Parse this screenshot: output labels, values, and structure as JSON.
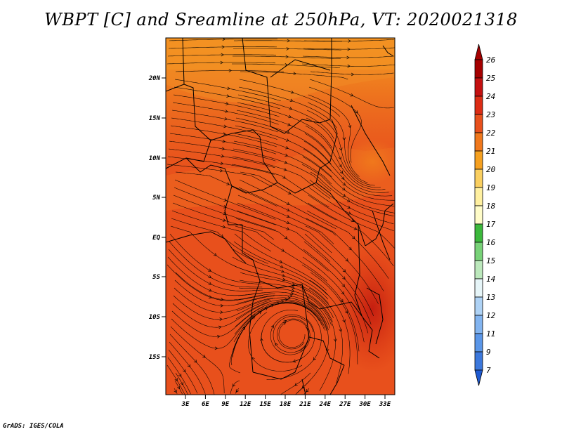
{
  "title": "WBPT [C] and Sreamline at 250hPa, VT: 2020021318",
  "footer": "GrADS: IGES/COLA",
  "map": {
    "lat_labels": [
      "20N",
      "15N",
      "10N",
      "5N",
      "EQ",
      "5S",
      "10S",
      "15S"
    ],
    "lon_labels": [
      "3E",
      "6E",
      "9E",
      "12E",
      "15E",
      "18E",
      "21E",
      "24E",
      "27E",
      "30E",
      "33E"
    ],
    "colors": {
      "base": "#e8501c",
      "north": "#f09426",
      "mid": "#ec6e20",
      "hot": "#d63012"
    }
  },
  "colorbar": {
    "labels": [
      "26",
      "25",
      "24",
      "23",
      "22",
      "21",
      "20",
      "19",
      "18",
      "17",
      "16",
      "15",
      "14",
      "13",
      "12",
      "11",
      "9",
      "7"
    ],
    "colors": [
      "#a50000",
      "#c41010",
      "#dc2c14",
      "#e8501c",
      "#f0781c",
      "#f5a020",
      "#facf60",
      "#fff0a0",
      "#fffcc8",
      "#3cb83c",
      "#78d278",
      "#bce8bc",
      "#e6f5f8",
      "#aed2f5",
      "#82b4f0",
      "#5a96e8",
      "#3c78dc",
      "#1e5ad2"
    ]
  }
}
